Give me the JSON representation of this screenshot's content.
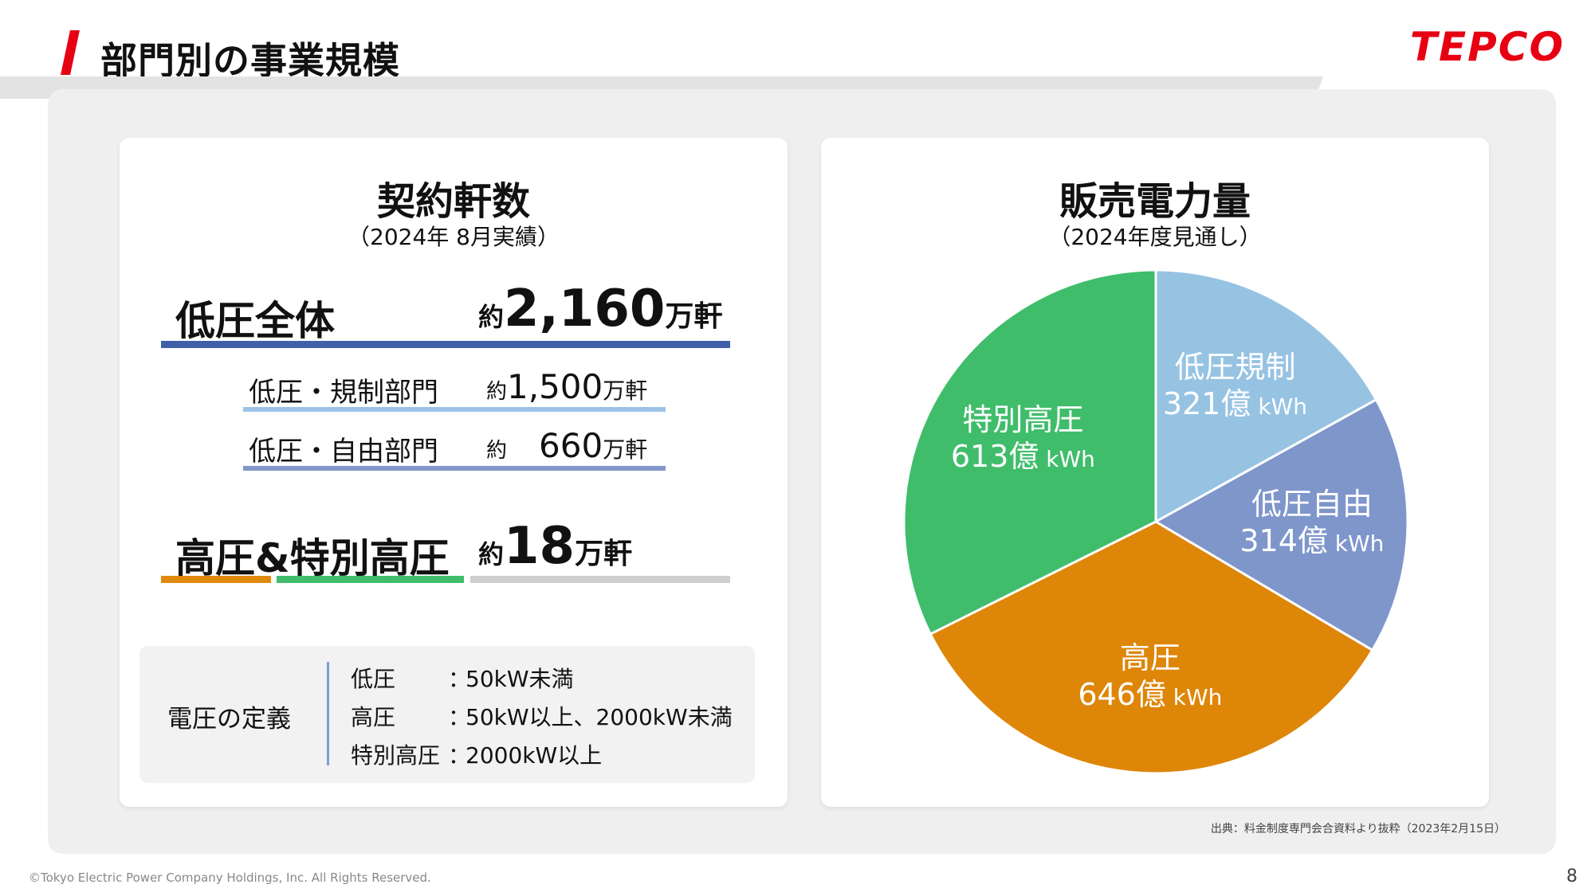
{
  "header": {
    "title": "部門別の事業規模",
    "logo": "TEPCO",
    "accent_color": "#e60012"
  },
  "contracts": {
    "title": "契約軒数",
    "subtitle": "（2024年 8月実績）",
    "total": {
      "label": "低圧全体",
      "prefix": "約",
      "value": "2,160",
      "unit": "万軒",
      "color": "#3f5fa8"
    },
    "regulated": {
      "label": "低圧・規制部門",
      "prefix": "約",
      "value": "1,500",
      "unit": "万軒",
      "color": "#9dc3e6"
    },
    "free": {
      "label": "低圧・自由部門",
      "prefix": "約",
      "value": "660",
      "unit": "万軒",
      "color": "#8497c8"
    },
    "high": {
      "label": "高圧&特別高圧",
      "prefix": "約",
      "value": "18",
      "unit": "万軒"
    },
    "high_bar_colors": [
      "#df8a0c",
      "#41bd6c",
      "#cfcfcf"
    ]
  },
  "definitions": {
    "title": "電圧の定義",
    "rows": [
      {
        "key": "低圧",
        "sep": "：",
        "value": "50kW未満"
      },
      {
        "key": "高圧",
        "sep": "：",
        "value": "50kW以上、2000kW未満"
      },
      {
        "key": "特別高圧",
        "sep": "：",
        "value": "2000kW以上"
      }
    ]
  },
  "sales": {
    "title": "販売電力量",
    "subtitle": "（2024年度見通し）"
  },
  "chart_data": {
    "type": "pie",
    "unit": "億 kWh",
    "slices": [
      {
        "name": "低圧規制",
        "value": 321,
        "value_label": "321億",
        "unit_label": "kWh",
        "color": "#97c3e3"
      },
      {
        "name": "低圧自由",
        "value": 314,
        "value_label": "314億",
        "unit_label": "kWh",
        "color": "#7f96cb"
      },
      {
        "name": "高圧",
        "value": 646,
        "value_label": "646億",
        "unit_label": "kWh",
        "color": "#de8608"
      },
      {
        "name": "特別高圧",
        "value": 613,
        "value_label": "613億",
        "unit_label": "kWh",
        "color": "#40bd6b"
      }
    ]
  },
  "source": "出典：料金制度専門会合資料より抜粋（2023年2月15日）",
  "footer": "©Tokyo Electric Power Company Holdings, Inc. All Rights Reserved.",
  "page_number": "8"
}
